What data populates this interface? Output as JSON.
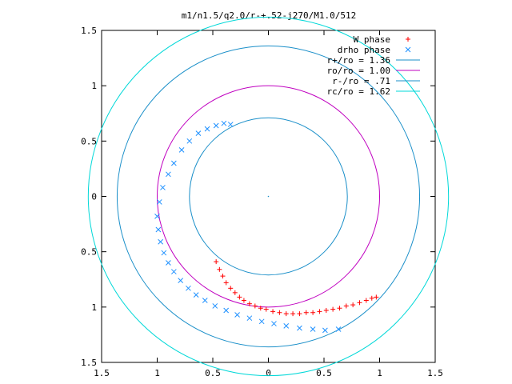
{
  "chart_data": {
    "type": "scatter",
    "title": "m1/n1.5/q2.0/r-+.52-j270/M1.0/512",
    "xlim": [
      -1.5,
      1.5
    ],
    "ylim": [
      -1.5,
      1.5
    ],
    "x_ticks": [
      -1.5,
      -1,
      -0.5,
      0,
      0.5,
      1,
      1.5
    ],
    "x_tick_labels": [
      "1.5",
      "1",
      "0.5",
      "0",
      "0.5",
      "1",
      "1.5"
    ],
    "y_ticks": [
      1.5,
      1,
      0.5,
      0,
      -0.5,
      -1,
      -1.5
    ],
    "y_tick_labels": [
      "1.5",
      "1",
      "0.5",
      "0",
      "0.5",
      "1",
      "1.5"
    ],
    "grid": false,
    "legend_position": "top-right",
    "series": [
      {
        "name": "W phase",
        "kind": "points",
        "marker": "plus",
        "color": "#ff0000",
        "x": [
          -0.47,
          -0.44,
          -0.41,
          -0.38,
          -0.34,
          -0.3,
          -0.26,
          -0.22,
          -0.17,
          -0.12,
          -0.07,
          -0.02,
          0.04,
          0.1,
          0.16,
          0.22,
          0.28,
          0.34,
          0.4,
          0.46,
          0.52,
          0.58,
          0.64,
          0.7,
          0.76,
          0.82,
          0.88,
          0.93,
          0.97
        ],
        "y": [
          -0.59,
          -0.66,
          -0.72,
          -0.78,
          -0.83,
          -0.87,
          -0.91,
          -0.94,
          -0.97,
          -0.99,
          -1.01,
          -1.02,
          -1.04,
          -1.05,
          -1.06,
          -1.06,
          -1.06,
          -1.05,
          -1.05,
          -1.04,
          -1.03,
          -1.02,
          -1.01,
          -0.99,
          -0.98,
          -0.96,
          -0.94,
          -0.92,
          -0.91
        ]
      },
      {
        "name": "drho phase",
        "kind": "points",
        "marker": "cross",
        "color": "#1e90ff",
        "x": [
          -0.34,
          -0.4,
          -0.47,
          -0.55,
          -0.63,
          -0.71,
          -0.78,
          -0.85,
          -0.9,
          -0.95,
          -0.98,
          -1.0,
          -0.99,
          -0.97,
          -0.94,
          -0.9,
          -0.85,
          -0.79,
          -0.72,
          -0.65,
          -0.57,
          -0.48,
          -0.38,
          -0.28,
          -0.17,
          -0.06,
          0.05,
          0.16,
          0.28,
          0.4,
          0.51,
          0.63
        ],
        "y": [
          0.65,
          0.66,
          0.64,
          0.61,
          0.57,
          0.5,
          0.42,
          0.3,
          0.2,
          0.08,
          -0.05,
          -0.18,
          -0.3,
          -0.41,
          -0.51,
          -0.6,
          -0.68,
          -0.76,
          -0.83,
          -0.89,
          -0.94,
          -0.99,
          -1.03,
          -1.07,
          -1.1,
          -1.13,
          -1.15,
          -1.17,
          -1.19,
          -1.2,
          -1.21,
          -1.2
        ]
      },
      {
        "name": "r+/ro = 1.36",
        "kind": "circle",
        "radius": 1.36,
        "color": "#1a8fc9"
      },
      {
        "name": "ro/ro = 1.00",
        "kind": "circle",
        "radius": 1.0,
        "color": "#c000c0"
      },
      {
        "name": "r-/ro = .71",
        "kind": "circle",
        "radius": 0.71,
        "color": "#1a8fc9"
      },
      {
        "name": "rc/ro = 1.62",
        "kind": "circle",
        "radius": 1.62,
        "color": "#00d8d8"
      }
    ]
  }
}
